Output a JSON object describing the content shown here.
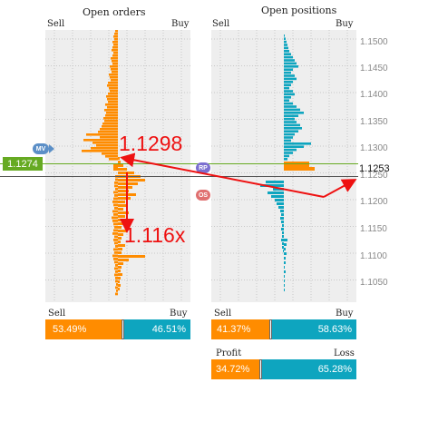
{
  "open_orders": {
    "title": "Open orders",
    "sell_label": "Sell",
    "buy_label": "Buy"
  },
  "open_positions": {
    "title": "Open positions",
    "sell_label": "Sell",
    "buy_label": "Buy"
  },
  "price_axis": [
    "1.1500",
    "1.1450",
    "1.1400",
    "1.1350",
    "1.1300",
    "1.1250",
    "1.1200",
    "1.1150",
    "1.1100",
    "1.1050"
  ],
  "current_price": "1.1253",
  "left_price": "1.1274",
  "badges": {
    "mv": "MV",
    "rp": "RP",
    "os": "OS"
  },
  "annotations": {
    "upper": "1.1298",
    "lower": "1.116x"
  },
  "orders_ratio": {
    "sell_label": "Sell",
    "buy_label": "Buy",
    "sell_value": "53.49%",
    "buy_value": "46.51%"
  },
  "positions_ratio": {
    "sell_label": "Sell",
    "buy_label": "Buy",
    "sell_value": "41.37%",
    "buy_value": "58.63%"
  },
  "profit_loss": {
    "profit_label": "Profit",
    "loss_label": "Loss",
    "profit_value": "34.72%",
    "loss_value": "65.28%"
  },
  "colors": {
    "orange": "#ff8c00",
    "teal": "#0ea5bf",
    "grid_bg": "#eeeeee",
    "green_line": "#66aa22",
    "annotation_red": "#ee1111"
  }
}
